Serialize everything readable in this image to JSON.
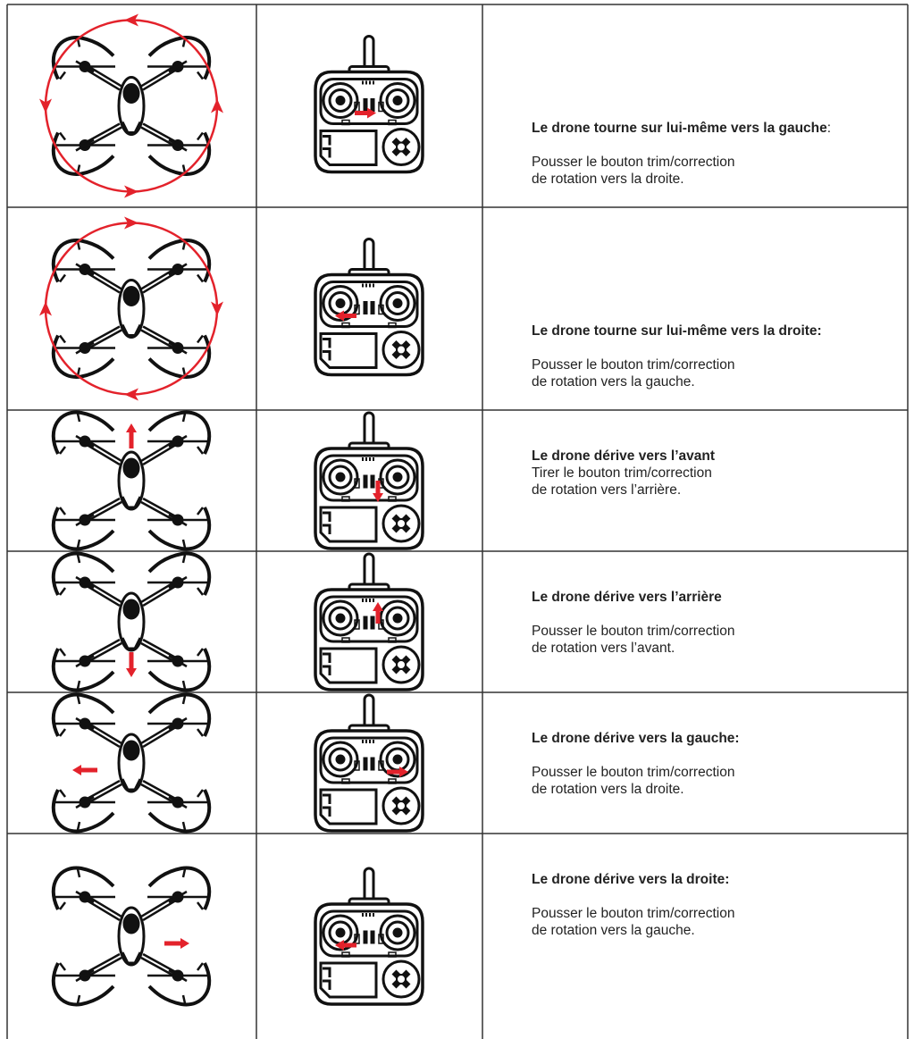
{
  "rows": [
    {
      "title": "Le drone tourne sur lui-même vers la gauche",
      "title_suffix": ":",
      "lines": [
        "Pousser le bouton trim/correction",
        "de rotation vers la droite."
      ]
    },
    {
      "title": "Le drone tourne sur lui-même vers la droite:",
      "lines": [
        "Pousser le bouton trim/correction",
        "de rotation vers la gauche."
      ]
    },
    {
      "title": "Le drone dérive vers l’avant",
      "lines": [
        "Tirer le bouton trim/correction",
        "de rotation vers l’arrière."
      ]
    },
    {
      "title": "Le drone dérive vers l’arrière",
      "lines": [
        "Pousser le bouton trim/correction",
        "de rotation vers l’avant."
      ]
    },
    {
      "title": "Le drone dérive vers la gauche:",
      "lines": [
        "Pousser le bouton trim/correction",
        "de rotation vers la droite."
      ]
    },
    {
      "title": "Le drone dérive vers la droite:",
      "lines": [
        "Pousser le bouton trim/correction",
        "de rotation vers la gauche."
      ]
    }
  ]
}
